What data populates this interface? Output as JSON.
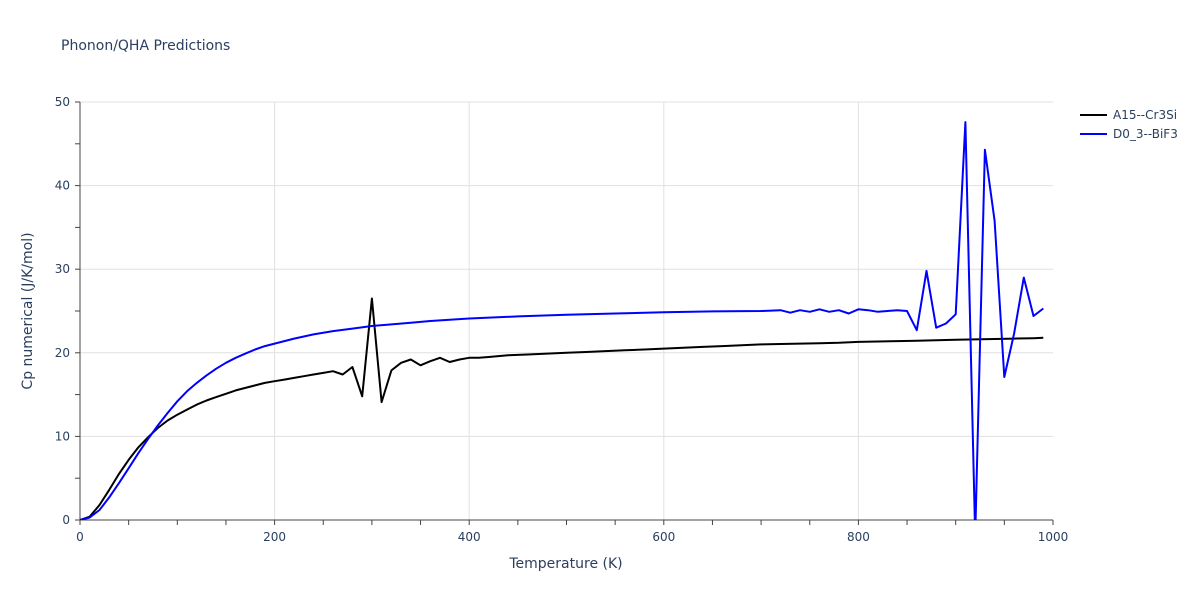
{
  "chart_data": {
    "type": "line",
    "title": "Phonon/QHA Predictions",
    "xlabel": "Temperature (K)",
    "ylabel": "Cp numerical (J/K/mol)",
    "xlim": [
      0,
      1000
    ],
    "ylim": [
      0,
      50
    ],
    "xticks": [
      0,
      200,
      400,
      600,
      800,
      1000
    ],
    "yticks": [
      0,
      10,
      20,
      30,
      40,
      50
    ],
    "grid": true,
    "legend_position": "top-right",
    "colors": {
      "A15--Cr3Si": "#000000",
      "D0_3--BiF3": "#0000ff"
    },
    "series": [
      {
        "name": "A15--Cr3Si",
        "color": "#000000",
        "x": [
          0,
          10,
          20,
          30,
          40,
          50,
          60,
          70,
          80,
          90,
          100,
          110,
          120,
          130,
          140,
          150,
          160,
          170,
          180,
          190,
          200,
          210,
          220,
          230,
          240,
          250,
          260,
          270,
          280,
          290,
          300,
          310,
          320,
          330,
          340,
          350,
          360,
          370,
          380,
          390,
          400,
          410,
          420,
          440,
          460,
          480,
          500,
          520,
          540,
          560,
          580,
          600,
          620,
          640,
          660,
          680,
          700,
          720,
          740,
          760,
          780,
          800,
          820,
          840,
          860,
          880,
          900,
          920,
          940,
          960,
          980,
          990
        ],
        "y": [
          0,
          0.4,
          1.8,
          3.6,
          5.5,
          7.2,
          8.7,
          9.9,
          11.0,
          11.9,
          12.6,
          13.2,
          13.8,
          14.3,
          14.7,
          15.1,
          15.5,
          15.8,
          16.1,
          16.4,
          16.6,
          16.8,
          17.0,
          17.2,
          17.4,
          17.6,
          17.8,
          17.4,
          18.3,
          14.8,
          26.5,
          14.1,
          17.9,
          18.8,
          19.2,
          18.5,
          19.0,
          19.4,
          18.9,
          19.2,
          19.4,
          19.4,
          19.5,
          19.7,
          19.8,
          19.9,
          20.0,
          20.1,
          20.2,
          20.3,
          20.4,
          20.5,
          20.6,
          20.7,
          20.8,
          20.9,
          21.0,
          21.05,
          21.1,
          21.15,
          21.2,
          21.3,
          21.35,
          21.4,
          21.45,
          21.5,
          21.55,
          21.6,
          21.65,
          21.7,
          21.75,
          21.8
        ]
      },
      {
        "name": "D0_3--BiF3",
        "color": "#0000ff",
        "x": [
          0,
          10,
          20,
          30,
          40,
          50,
          60,
          70,
          80,
          90,
          100,
          110,
          120,
          130,
          140,
          150,
          160,
          170,
          180,
          190,
          200,
          220,
          240,
          260,
          280,
          300,
          320,
          340,
          360,
          380,
          400,
          450,
          500,
          550,
          600,
          650,
          700,
          720,
          730,
          740,
          750,
          760,
          770,
          780,
          790,
          800,
          810,
          820,
          830,
          840,
          850,
          860,
          870,
          880,
          890,
          900,
          910,
          920,
          930,
          940,
          950,
          960,
          970,
          980,
          990
        ],
        "y": [
          0,
          0.3,
          1.2,
          2.7,
          4.4,
          6.2,
          8.0,
          9.7,
          11.3,
          12.8,
          14.2,
          15.4,
          16.4,
          17.3,
          18.1,
          18.8,
          19.4,
          19.9,
          20.4,
          20.8,
          21.1,
          21.7,
          22.2,
          22.6,
          22.9,
          23.2,
          23.4,
          23.6,
          23.8,
          23.95,
          24.1,
          24.35,
          24.55,
          24.7,
          24.85,
          24.95,
          25.0,
          25.1,
          24.8,
          25.1,
          24.9,
          25.2,
          24.9,
          25.1,
          24.7,
          25.2,
          25.1,
          24.9,
          25.0,
          25.1,
          25.0,
          22.7,
          29.8,
          23.0,
          23.5,
          24.6,
          47.6,
          -2.0,
          44.3,
          35.8,
          17.1,
          22.3,
          29.0,
          24.4,
          25.3
        ]
      }
    ]
  }
}
